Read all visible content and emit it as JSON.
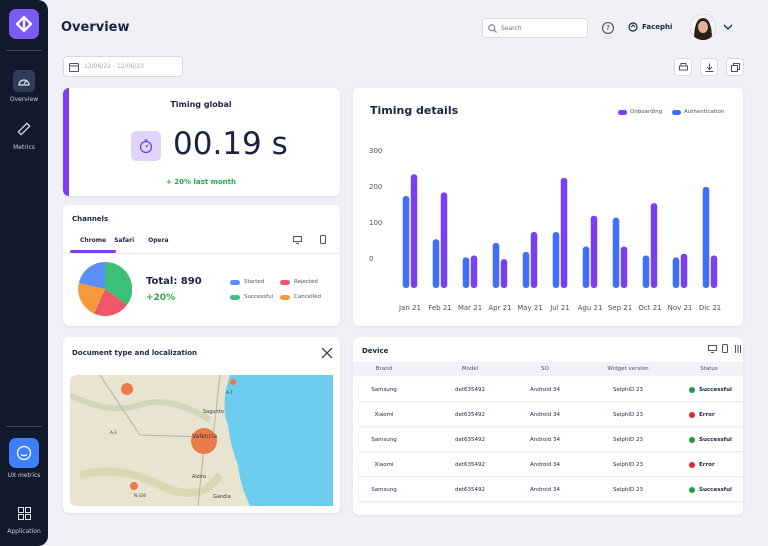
{
  "page": {
    "title": "Overview"
  },
  "sidebar": {
    "items": [
      {
        "label": "Overview",
        "icon": "dashboard-gauge-icon"
      },
      {
        "label": "Metrics",
        "icon": "ruler-icon"
      },
      {
        "label": "UX metrics",
        "icon": "smiley-icon"
      },
      {
        "label": "Application",
        "icon": "grid-icon"
      }
    ]
  },
  "header": {
    "search_placeholder": "Search",
    "org_name": "Facephi"
  },
  "toolbar": {
    "date_range": "12/06/22 - 12/06/23"
  },
  "timing_global": {
    "title": "Timing global",
    "value": "00.19 s",
    "trend": "+ 20% last month"
  },
  "channels": {
    "title": "Channels",
    "tabs": [
      "Chrome",
      "Safari",
      "Opera"
    ],
    "total": "Total: 890",
    "trend": "+20%",
    "legend": [
      "Started",
      "Rejected",
      "Successful",
      "Cancelled"
    ]
  },
  "timing_details": {
    "title": "Timing details",
    "legend": [
      "Onboarding",
      "Authentication"
    ]
  },
  "chart_data": {
    "type": "bar",
    "categories": [
      "Jan 21",
      "Feb 21",
      "Mar 21",
      "Apr 21",
      "May 21",
      "Jul 21",
      "Agu 21",
      "Sep 21",
      "Oct 21",
      "Nov 21",
      "Dic 21"
    ],
    "series": [
      {
        "name": "Authentication",
        "values": [
          175,
          55,
          5,
          45,
          20,
          75,
          35,
          115,
          10,
          5,
          200
        ]
      },
      {
        "name": "Onboarding",
        "values": [
          235,
          185,
          10,
          0,
          75,
          225,
          120,
          35,
          155,
          15,
          10
        ]
      }
    ],
    "yticks": [
      0,
      100,
      200,
      300
    ],
    "ylim": [
      -80,
      330
    ],
    "colors": {
      "Onboarding": "#7b3ff2",
      "Authentication": "#3f6ff6"
    }
  },
  "document_map": {
    "title": "Document type and localization",
    "place_labels": [
      "Sagunto",
      "Valencia",
      "Alzira",
      "Gandia",
      "A-7",
      "N-330",
      "A-3"
    ]
  },
  "device": {
    "title": "Device",
    "columns": [
      "Brand",
      "Model",
      "SO",
      "Widget version",
      "Status"
    ],
    "rows": [
      {
        "brand": "Samsung",
        "model": "det635492",
        "so": "Android 34",
        "widget": "SelphID 23",
        "status": "Successful"
      },
      {
        "brand": "Xiaomi",
        "model": "det635492",
        "so": "Android 34",
        "widget": "SelphID 23",
        "status": "Error"
      },
      {
        "brand": "Samsung",
        "model": "det635492",
        "so": "Android 34",
        "widget": "SelphID 23",
        "status": "Successful"
      },
      {
        "brand": "Xiaomi",
        "model": "det635492",
        "so": "Android 34",
        "widget": "SelphID 23",
        "status": "Error"
      },
      {
        "brand": "Samsung",
        "model": "det635492",
        "so": "Android 34",
        "widget": "SelphID 23",
        "status": "Successful"
      }
    ],
    "status_colors": {
      "Successful": "#1f9d3f",
      "Error": "#e0282e"
    }
  },
  "colors": {
    "accent": "#7b3ff2",
    "primary_blue": "#3f6ff6",
    "sidebar_bg": "#111a2c",
    "positive": "#2aa64c"
  }
}
